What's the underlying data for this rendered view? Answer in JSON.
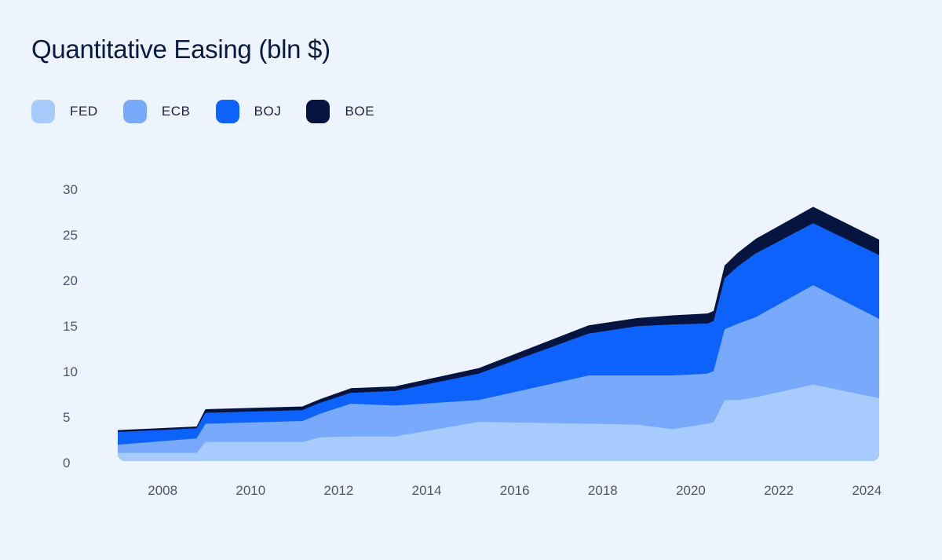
{
  "title": "Quantitative Easing (bln $)",
  "colors": {
    "background": "#edf4fe",
    "FED": "#a8cbfd",
    "ECB": "#78a9fa",
    "BOJ": "#0d62fb",
    "BOE": "#061540"
  },
  "legend": [
    {
      "label": "FED",
      "color": "#a8cbfd"
    },
    {
      "label": "ECB",
      "color": "#78a9fa"
    },
    {
      "label": "BOJ",
      "color": "#0d62fb"
    },
    {
      "label": "BOE",
      "color": "#061540"
    }
  ],
  "chart_data": {
    "type": "area",
    "stacked": true,
    "title": "Quantitative Easing (bln $)",
    "xlabel": "",
    "ylabel": "",
    "x": [
      2007.0,
      2008.8,
      2009.0,
      2011.2,
      2011.6,
      2012.3,
      2013.3,
      2015.2,
      2017.7,
      2018.8,
      2019.6,
      2020.4,
      2020.55,
      2020.8,
      2021.1,
      2021.5,
      2022.8,
      2024.3
    ],
    "series": [
      {
        "name": "FED",
        "values": [
          1.0,
          1.0,
          2.2,
          2.2,
          2.7,
          2.8,
          2.8,
          4.4,
          4.2,
          4.1,
          3.6,
          4.2,
          4.4,
          6.8,
          6.8,
          7.1,
          8.5,
          7.0
        ]
      },
      {
        "name": "ECB",
        "values": [
          0.9,
          1.6,
          2.0,
          2.3,
          2.6,
          3.6,
          3.4,
          2.4,
          5.3,
          5.4,
          5.9,
          5.5,
          5.6,
          7.8,
          8.4,
          8.8,
          10.9,
          8.7
        ]
      },
      {
        "name": "BOJ",
        "values": [
          1.4,
          1.1,
          1.2,
          1.2,
          1.2,
          1.2,
          1.6,
          2.9,
          4.6,
          5.4,
          5.6,
          5.5,
          5.5,
          5.6,
          6.3,
          7.0,
          6.8,
          7.0
        ]
      },
      {
        "name": "BOE",
        "values": [
          0.2,
          0.2,
          0.4,
          0.4,
          0.4,
          0.5,
          0.5,
          0.6,
          0.9,
          0.9,
          1.0,
          1.1,
          1.1,
          1.4,
          1.5,
          1.6,
          1.8,
          1.7
        ]
      }
    ],
    "x_ticks": [
      "2008",
      "2010",
      "2012",
      "2014",
      "2016",
      "2018",
      "2020",
      "2022",
      "2024"
    ],
    "y_ticks": [
      "0",
      "5",
      "10",
      "15",
      "20",
      "25",
      "30"
    ],
    "xlim": [
      2007.0,
      2024.3
    ],
    "ylim": [
      0,
      30
    ],
    "grid": false,
    "legend_position": "top-left"
  }
}
